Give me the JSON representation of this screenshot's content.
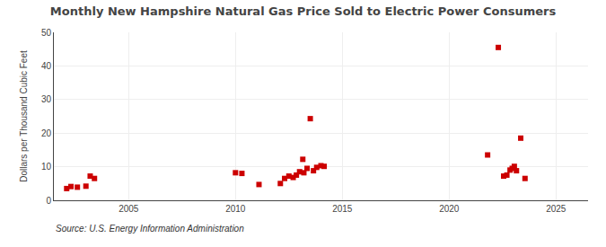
{
  "chart_data": {
    "type": "scatter",
    "title": "Monthly New Hampshire Natural Gas Price Sold to Electric Power Consumers",
    "ylabel": "Dollars per Thousand Cubic Feet",
    "annotations": [
      "Source: U.S. Energy Information Administration"
    ],
    "x": [
      2002.1,
      2002.3,
      2002.6,
      2003.0,
      2003.2,
      2003.4,
      2010.0,
      2010.3,
      2011.1,
      2012.1,
      2012.3,
      2012.5,
      2012.7,
      2012.85,
      2013.0,
      2013.15,
      2013.2,
      2013.35,
      2013.5,
      2013.65,
      2013.8,
      2014.0,
      2014.15,
      2021.8,
      2022.3,
      2022.55,
      2022.7,
      2022.85,
      2022.95,
      2023.05,
      2023.15,
      2023.35,
      2023.55
    ],
    "values": [
      3.5,
      4.1,
      3.9,
      4.2,
      7.2,
      6.5,
      8.2,
      8.0,
      4.7,
      5.0,
      6.5,
      7.2,
      6.8,
      7.5,
      8.5,
      12.2,
      8.2,
      9.5,
      24.3,
      8.8,
      9.8,
      10.3,
      10.1,
      13.5,
      45.5,
      7.2,
      7.5,
      9.0,
      9.5,
      10.1,
      8.8,
      18.5,
      6.5
    ],
    "color": "#cc0000",
    "marker": "square",
    "xlim": [
      2001.5,
      2026.5
    ],
    "xticks": [
      2005,
      2010,
      2015,
      2020,
      2025
    ],
    "ylim": [
      0,
      50
    ],
    "yticks": [
      0,
      10,
      20,
      30,
      40,
      50
    ],
    "grid": true
  }
}
